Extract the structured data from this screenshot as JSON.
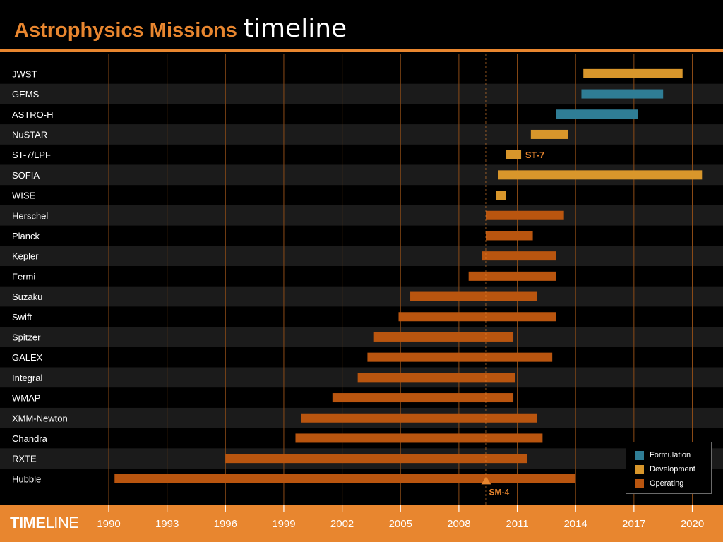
{
  "header": {
    "title_main": "Astrophysics Missions",
    "title_sub": "timeline"
  },
  "footer": {
    "brand_bold": "TIME",
    "brand_light": "LINE"
  },
  "colors": {
    "accent": "#e8862f",
    "formulation": "#2f7d95",
    "development": "#d8962b",
    "operating": "#b9550f",
    "grid": "#8a4a16",
    "row_alt": "#1b1b1b"
  },
  "legend": [
    {
      "label": "Formulation",
      "color": "#2f7d95"
    },
    {
      "label": "Development",
      "color": "#d8962b"
    },
    {
      "label": "Operating",
      "color": "#b9550f"
    }
  ],
  "chart_data": {
    "type": "bar",
    "orientation": "horizontal-timeline",
    "xlim": [
      1990,
      2020.5
    ],
    "x_ticks": [
      1990,
      1993,
      1996,
      1999,
      2002,
      2005,
      2008,
      2011,
      2014,
      2017,
      2020
    ],
    "grid": true,
    "legend_position": "bottom-right",
    "missions": [
      {
        "name": "JWST",
        "phases": [
          {
            "phase": "development",
            "start": 2014.4,
            "end": 2019.5
          }
        ]
      },
      {
        "name": "GEMS",
        "phases": [
          {
            "phase": "formulation",
            "start": 2014.3,
            "end": 2018.5
          }
        ]
      },
      {
        "name": "ASTRO-H",
        "phases": [
          {
            "phase": "formulation",
            "start": 2013.0,
            "end": 2017.2
          }
        ]
      },
      {
        "name": "NuSTAR",
        "phases": [
          {
            "phase": "development",
            "start": 2011.7,
            "end": 2013.6
          }
        ]
      },
      {
        "name": "ST-7/LPF",
        "phases": [
          {
            "phase": "development",
            "start": 2010.4,
            "end": 2011.2
          }
        ]
      },
      {
        "name": "SOFIA",
        "phases": [
          {
            "phase": "development",
            "start": 2010.0,
            "end": 2020.5
          }
        ]
      },
      {
        "name": "WISE",
        "phases": [
          {
            "phase": "development",
            "start": 2009.9,
            "end": 2010.4
          }
        ]
      },
      {
        "name": "Herschel",
        "phases": [
          {
            "phase": "operating",
            "start": 2009.4,
            "end": 2013.4
          }
        ]
      },
      {
        "name": "Planck",
        "phases": [
          {
            "phase": "operating",
            "start": 2009.4,
            "end": 2011.8
          }
        ]
      },
      {
        "name": "Kepler",
        "phases": [
          {
            "phase": "operating",
            "start": 2009.2,
            "end": 2013.0
          }
        ]
      },
      {
        "name": "Fermi",
        "phases": [
          {
            "phase": "operating",
            "start": 2008.5,
            "end": 2013.0
          }
        ]
      },
      {
        "name": "Suzaku",
        "phases": [
          {
            "phase": "operating",
            "start": 2005.5,
            "end": 2012.0
          }
        ]
      },
      {
        "name": "Swift",
        "phases": [
          {
            "phase": "operating",
            "start": 2004.9,
            "end": 2013.0
          }
        ]
      },
      {
        "name": "Spitzer",
        "phases": [
          {
            "phase": "operating",
            "start": 2003.6,
            "end": 2010.8
          }
        ]
      },
      {
        "name": "GALEX",
        "phases": [
          {
            "phase": "operating",
            "start": 2003.3,
            "end": 2012.8
          }
        ]
      },
      {
        "name": "Integral",
        "phases": [
          {
            "phase": "operating",
            "start": 2002.8,
            "end": 2010.9
          }
        ]
      },
      {
        "name": "WMAP",
        "phases": [
          {
            "phase": "operating",
            "start": 2001.5,
            "end": 2010.8
          }
        ]
      },
      {
        "name": "XMM-Newton",
        "phases": [
          {
            "phase": "operating",
            "start": 1999.9,
            "end": 2012.0
          }
        ]
      },
      {
        "name": "Chandra",
        "phases": [
          {
            "phase": "operating",
            "start": 1999.6,
            "end": 2012.3
          }
        ]
      },
      {
        "name": "RXTE",
        "phases": [
          {
            "phase": "operating",
            "start": 1996.0,
            "end": 2011.5
          }
        ]
      },
      {
        "name": "Hubble",
        "phases": [
          {
            "phase": "operating",
            "start": 1990.3,
            "end": 2014.0
          }
        ]
      }
    ],
    "annotations": [
      {
        "text": "ST-7",
        "mission": "ST-7/LPF",
        "x": 2011.3
      },
      {
        "text": "SM-4",
        "mission": "Hubble",
        "x": 2009.4,
        "marker": "triangle",
        "reference_line": true
      }
    ]
  }
}
